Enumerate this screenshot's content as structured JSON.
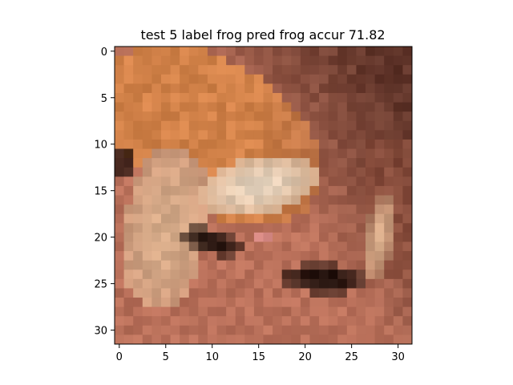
{
  "title": "test 5 label frog pred frog accur 71.82",
  "image": {
    "resolution": 32,
    "subject": "pixelated low-resolution frog photo, orange-brown body on reddish-brown background"
  },
  "axes": {
    "x_ticks": [
      "0",
      "5",
      "10",
      "15",
      "20",
      "25",
      "30"
    ],
    "y_ticks": [
      "0",
      "5",
      "10",
      "15",
      "20",
      "25",
      "30"
    ],
    "x_range": [
      -0.5,
      31.5
    ],
    "y_range": [
      -0.5,
      31.5
    ]
  },
  "colors": {
    "background": "#ffffff",
    "axis": "#000000",
    "palette": {
      "bg_red": "#b9705a",
      "bg_dark": "#5e3328",
      "frog_orange": "#d28249",
      "frog_tan": "#d5aa88",
      "belly_light": "#e6d3bd",
      "shadow_black": "#1a0c08",
      "eye_pink": "#d88a86",
      "mid_brown": "#8c4e3c"
    }
  }
}
